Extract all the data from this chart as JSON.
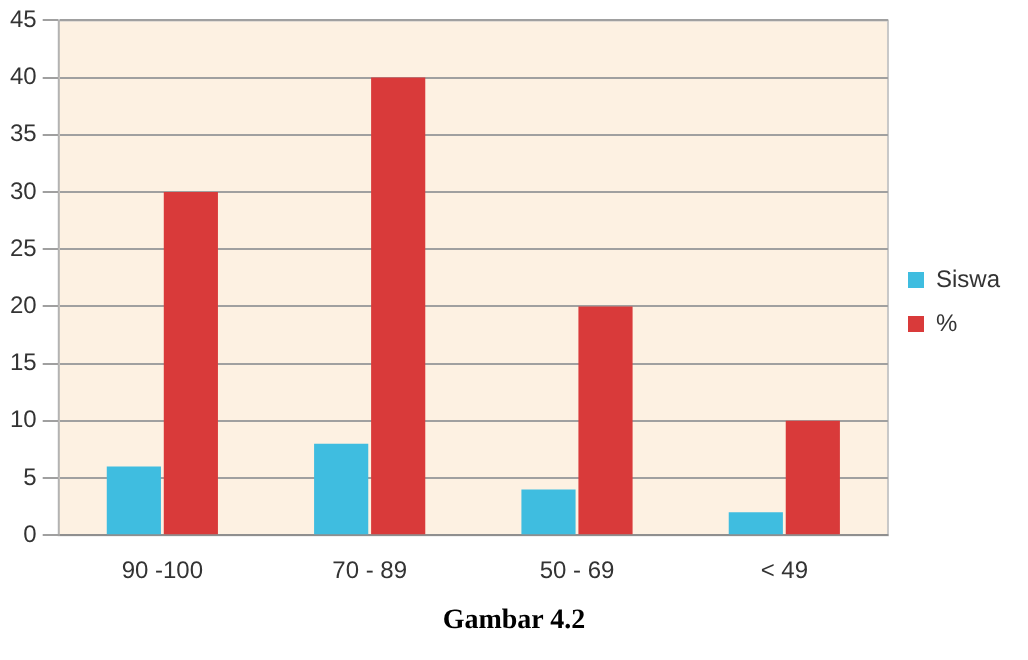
{
  "chart_data": {
    "type": "bar",
    "categories": [
      "90 -100",
      "70 - 89",
      "50 - 69",
      "< 49"
    ],
    "series": [
      {
        "name": "Siswa",
        "color": "#3fbde0",
        "values": [
          6,
          8,
          4,
          2
        ]
      },
      {
        "name": "%",
        "color": "#d93a3a",
        "values": [
          30,
          40,
          20,
          10
        ]
      }
    ],
    "ylim": [
      0,
      45
    ],
    "yticks": [
      0,
      5,
      10,
      15,
      20,
      25,
      30,
      35,
      40,
      45
    ],
    "grid": "y",
    "legend": "right",
    "annotations": [
      "Gambar 4.2"
    ]
  }
}
